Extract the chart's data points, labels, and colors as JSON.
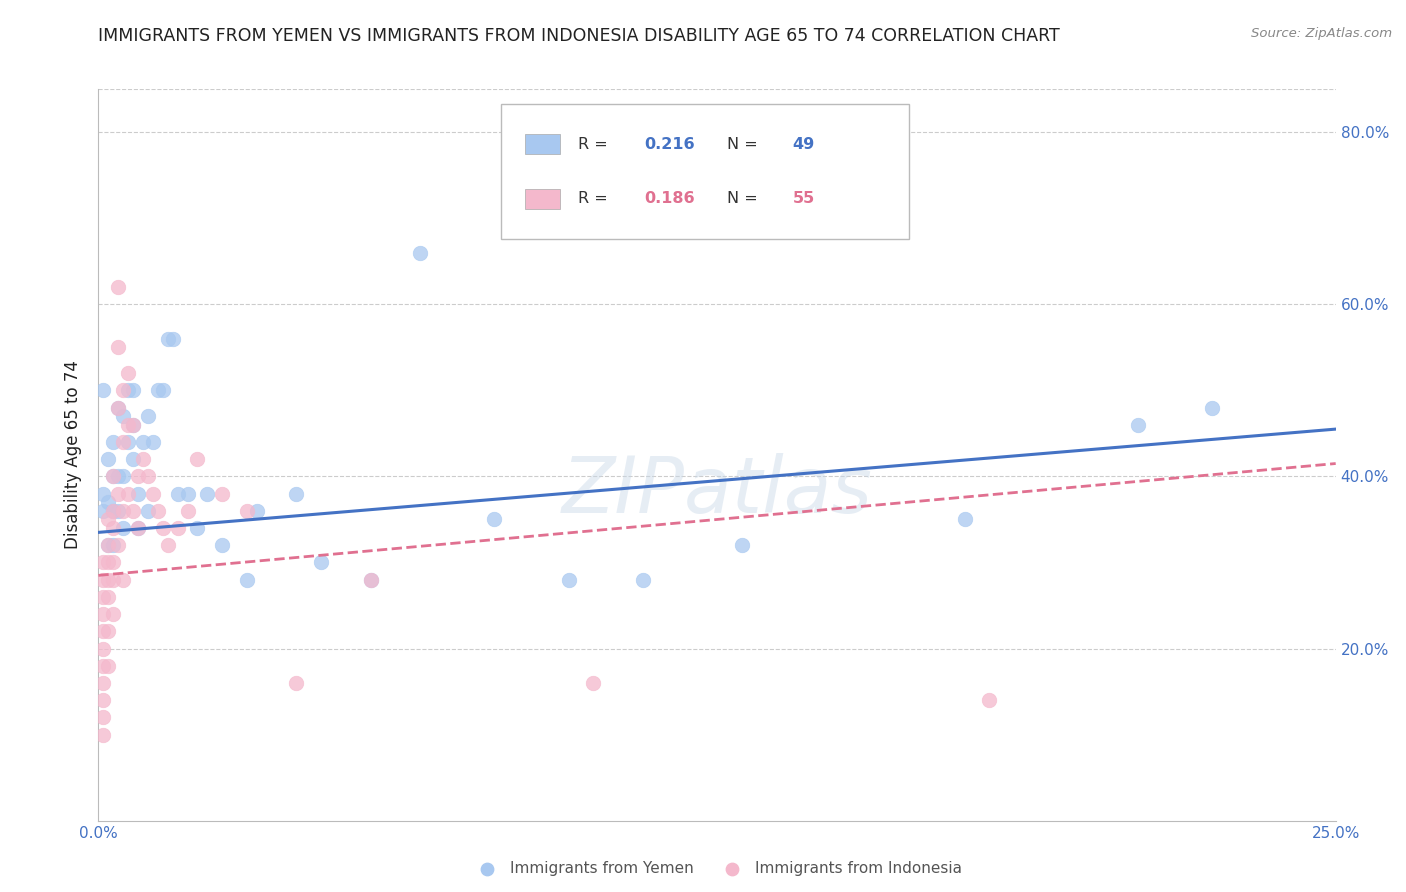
{
  "title": "IMMIGRANTS FROM YEMEN VS IMMIGRANTS FROM INDONESIA DISABILITY AGE 65 TO 74 CORRELATION CHART",
  "source": "Source: ZipAtlas.com",
  "ylabel": "Disability Age 65 to 74",
  "xmin": 0.0,
  "xmax": 0.25,
  "ymin": 0.0,
  "ymax": 0.85,
  "yticks": [
    0.2,
    0.4,
    0.6,
    0.8
  ],
  "ytick_labels": [
    "20.0%",
    "40.0%",
    "60.0%",
    "80.0%"
  ],
  "xticks": [
    0.0,
    0.05,
    0.1,
    0.15,
    0.2,
    0.25
  ],
  "xtick_labels": [
    "0.0%",
    "",
    "",
    "",
    "",
    "25.0%"
  ],
  "series1_name": "Immigrants from Yemen",
  "series1_color": "#a8c8f0",
  "series1_line_color": "#4472c4",
  "series1_R": 0.216,
  "series1_N": 49,
  "series2_name": "Immigrants from Indonesia",
  "series2_color": "#f4b8cc",
  "series2_line_color": "#e07090",
  "series2_R": 0.186,
  "series2_N": 55,
  "series1_x": [
    0.001,
    0.001,
    0.001,
    0.002,
    0.002,
    0.002,
    0.003,
    0.003,
    0.003,
    0.003,
    0.004,
    0.004,
    0.004,
    0.005,
    0.005,
    0.005,
    0.006,
    0.006,
    0.007,
    0.007,
    0.007,
    0.008,
    0.008,
    0.009,
    0.01,
    0.01,
    0.011,
    0.012,
    0.013,
    0.014,
    0.015,
    0.016,
    0.018,
    0.02,
    0.022,
    0.025,
    0.03,
    0.032,
    0.04,
    0.045,
    0.055,
    0.065,
    0.08,
    0.095,
    0.11,
    0.13,
    0.175,
    0.21,
    0.225
  ],
  "series1_y": [
    0.38,
    0.36,
    0.5,
    0.42,
    0.37,
    0.32,
    0.44,
    0.4,
    0.36,
    0.32,
    0.48,
    0.4,
    0.36,
    0.47,
    0.4,
    0.34,
    0.5,
    0.44,
    0.5,
    0.46,
    0.42,
    0.38,
    0.34,
    0.44,
    0.47,
    0.36,
    0.44,
    0.5,
    0.5,
    0.56,
    0.56,
    0.38,
    0.38,
    0.34,
    0.38,
    0.32,
    0.28,
    0.36,
    0.38,
    0.3,
    0.28,
    0.66,
    0.35,
    0.28,
    0.28,
    0.32,
    0.35,
    0.46,
    0.48
  ],
  "series2_x": [
    0.001,
    0.001,
    0.001,
    0.001,
    0.001,
    0.001,
    0.001,
    0.001,
    0.001,
    0.001,
    0.001,
    0.002,
    0.002,
    0.002,
    0.002,
    0.002,
    0.002,
    0.002,
    0.003,
    0.003,
    0.003,
    0.003,
    0.003,
    0.003,
    0.004,
    0.004,
    0.004,
    0.004,
    0.004,
    0.005,
    0.005,
    0.005,
    0.005,
    0.006,
    0.006,
    0.006,
    0.007,
    0.007,
    0.008,
    0.008,
    0.009,
    0.01,
    0.011,
    0.012,
    0.013,
    0.014,
    0.016,
    0.018,
    0.02,
    0.025,
    0.03,
    0.04,
    0.055,
    0.1,
    0.18
  ],
  "series2_y": [
    0.3,
    0.28,
    0.26,
    0.24,
    0.22,
    0.2,
    0.18,
    0.16,
    0.14,
    0.12,
    0.1,
    0.35,
    0.32,
    0.3,
    0.28,
    0.26,
    0.22,
    0.18,
    0.4,
    0.36,
    0.34,
    0.3,
    0.28,
    0.24,
    0.62,
    0.55,
    0.48,
    0.38,
    0.32,
    0.5,
    0.44,
    0.36,
    0.28,
    0.52,
    0.46,
    0.38,
    0.46,
    0.36,
    0.4,
    0.34,
    0.42,
    0.4,
    0.38,
    0.36,
    0.34,
    0.32,
    0.34,
    0.36,
    0.42,
    0.38,
    0.36,
    0.16,
    0.28,
    0.16,
    0.14
  ],
  "trend1_x0": 0.0,
  "trend1_x1": 0.25,
  "trend1_y0": 0.335,
  "trend1_y1": 0.455,
  "trend2_x0": 0.0,
  "trend2_x1": 0.25,
  "trend2_y0": 0.285,
  "trend2_y1": 0.415,
  "background_color": "#ffffff",
  "grid_color": "#cccccc",
  "title_color": "#222222",
  "axis_color": "#4472c4",
  "watermark": "ZIPatlas"
}
